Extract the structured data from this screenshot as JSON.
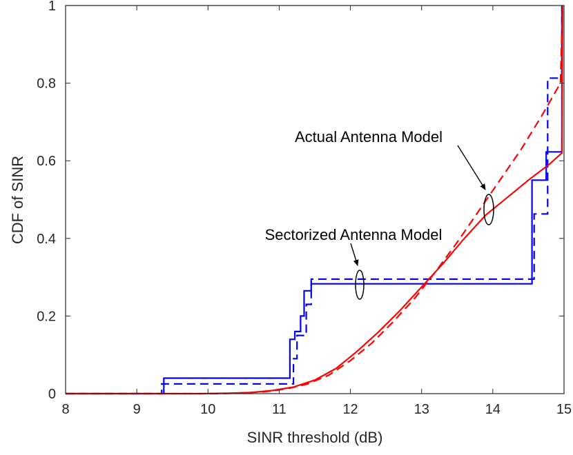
{
  "chart_data": {
    "type": "line",
    "title": "",
    "xlabel": "SINR threshold (dB)",
    "ylabel": "CDF of SINR",
    "xlim": [
      8,
      15
    ],
    "ylim": [
      0,
      1
    ],
    "xticks": [
      8,
      9,
      10,
      11,
      12,
      13,
      14,
      15
    ],
    "yticks": [
      0,
      0.2,
      0.4,
      0.6,
      0.8,
      1
    ],
    "xtick_labels": [
      "8",
      "9",
      "10",
      "11",
      "12",
      "13",
      "14",
      "15"
    ],
    "ytick_labels": [
      "0",
      "0.2",
      "0.4",
      "0.6",
      "0.8",
      "1"
    ],
    "grid": false,
    "annotations": [
      {
        "text": "Actual Antenna Model",
        "target": [
          13.95,
          0.47
        ]
      },
      {
        "text": "Sectorized Antenna Model",
        "target": [
          12.15,
          0.28
        ]
      }
    ],
    "series": [
      {
        "name": "Sectorized solid",
        "color": "#0000ff",
        "style": "solid",
        "step": true,
        "points": [
          [
            8,
            0
          ],
          [
            9.38,
            0
          ],
          [
            9.38,
            0.04
          ],
          [
            11.15,
            0.04
          ],
          [
            11.15,
            0.14
          ],
          [
            11.22,
            0.14
          ],
          [
            11.22,
            0.16
          ],
          [
            11.3,
            0.16
          ],
          [
            11.3,
            0.2
          ],
          [
            11.35,
            0.2
          ],
          [
            11.35,
            0.265
          ],
          [
            11.45,
            0.265
          ],
          [
            11.45,
            0.283
          ],
          [
            14.55,
            0.283
          ],
          [
            14.55,
            0.55
          ],
          [
            14.75,
            0.55
          ],
          [
            14.75,
            0.623
          ],
          [
            14.97,
            0.623
          ],
          [
            14.97,
            1
          ]
        ]
      },
      {
        "name": "Sectorized dashed",
        "color": "#0000ff",
        "style": "dashed",
        "step": true,
        "points": [
          [
            8,
            0
          ],
          [
            9.35,
            0
          ],
          [
            9.35,
            0.025
          ],
          [
            11.2,
            0.025
          ],
          [
            11.2,
            0.09
          ],
          [
            11.25,
            0.09
          ],
          [
            11.25,
            0.15
          ],
          [
            11.38,
            0.15
          ],
          [
            11.38,
            0.23
          ],
          [
            11.45,
            0.23
          ],
          [
            11.45,
            0.295
          ],
          [
            14.58,
            0.295
          ],
          [
            14.58,
            0.463
          ],
          [
            14.77,
            0.463
          ],
          [
            14.77,
            0.813
          ],
          [
            14.97,
            0.813
          ],
          [
            14.97,
            1
          ]
        ]
      },
      {
        "name": "Actual solid",
        "color": "#ff0000",
        "style": "solid",
        "step": false,
        "points": [
          [
            8,
            0
          ],
          [
            9.9,
            0
          ],
          [
            10.3,
            0.001
          ],
          [
            10.6,
            0.003
          ],
          [
            10.9,
            0.008
          ],
          [
            11.2,
            0.017
          ],
          [
            11.5,
            0.035
          ],
          [
            11.8,
            0.065
          ],
          [
            12.1,
            0.11
          ],
          [
            12.4,
            0.16
          ],
          [
            12.7,
            0.215
          ],
          [
            13.0,
            0.275
          ],
          [
            13.3,
            0.335
          ],
          [
            13.6,
            0.4
          ],
          [
            13.9,
            0.46
          ],
          [
            14.2,
            0.505
          ],
          [
            14.5,
            0.55
          ],
          [
            14.8,
            0.592
          ],
          [
            14.97,
            0.62
          ],
          [
            14.98,
            1
          ]
        ]
      },
      {
        "name": "Actual dashed",
        "color": "#ff0000",
        "style": "dashed",
        "step": false,
        "points": [
          [
            8,
            0
          ],
          [
            10.2,
            0
          ],
          [
            10.5,
            0.002
          ],
          [
            10.8,
            0.005
          ],
          [
            11.1,
            0.012
          ],
          [
            11.4,
            0.025
          ],
          [
            11.7,
            0.048
          ],
          [
            12.0,
            0.085
          ],
          [
            12.3,
            0.13
          ],
          [
            12.6,
            0.185
          ],
          [
            12.9,
            0.245
          ],
          [
            13.2,
            0.315
          ],
          [
            13.5,
            0.39
          ],
          [
            13.8,
            0.47
          ],
          [
            14.1,
            0.55
          ],
          [
            14.4,
            0.63
          ],
          [
            14.7,
            0.72
          ],
          [
            14.95,
            0.8
          ],
          [
            14.98,
            1
          ]
        ]
      }
    ]
  }
}
